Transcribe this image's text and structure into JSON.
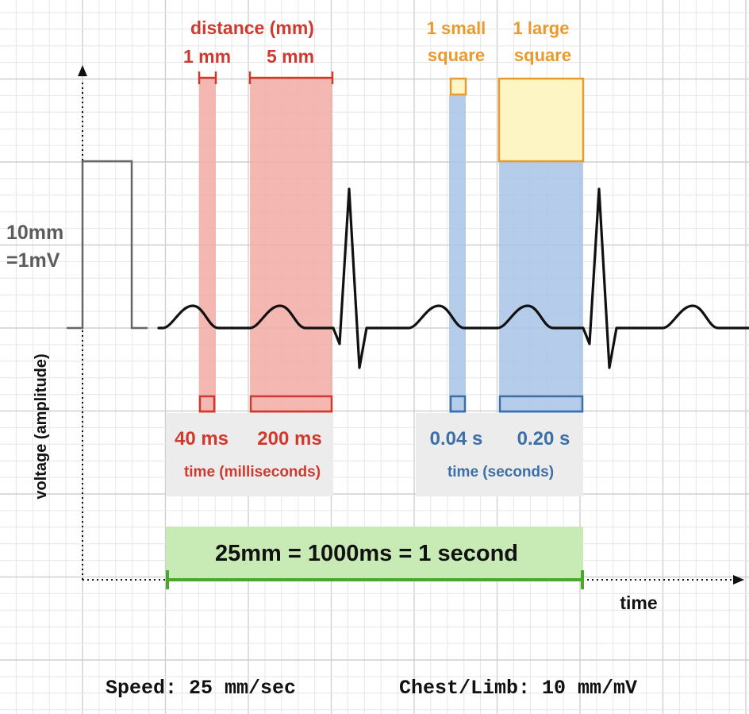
{
  "colors": {
    "red": "#cf3a2e",
    "red_fill": "#f2aaa5",
    "orange": "#ea9a2c",
    "orange_fill": "#fdf6c4",
    "blue": "#3c6fa8",
    "blue_fill": "#a8c4e6",
    "green": "#4aa82f",
    "green_fill": "#c8eab4",
    "gray_text": "#5c5c5c",
    "grid_minor": "#e6e6e6",
    "grid_major": "#cfcfcf"
  },
  "distance": {
    "title": "distance (mm)",
    "small_label": "1 mm",
    "large_label": "5 mm"
  },
  "squares": {
    "small_line1": "1 small",
    "small_line2": "square",
    "large_line1": "1 large",
    "large_line2": "square"
  },
  "calibration": {
    "line1": "10mm",
    "line2": "=1mV"
  },
  "time_ms": {
    "small_value": "40 ms",
    "large_value": "200 ms",
    "caption": "time (milliseconds)"
  },
  "time_s": {
    "small_value": "0.04 s",
    "large_value": "0.20 s",
    "caption": "time (seconds)"
  },
  "second_bar": {
    "label": "25mm = 1000ms = 1 second"
  },
  "axes": {
    "y_label": "voltage (amplitude)",
    "x_label": "time"
  },
  "footer": {
    "speed": "Speed: 25 mm/sec",
    "gain": "Chest/Limb: 10 mm/mV"
  }
}
